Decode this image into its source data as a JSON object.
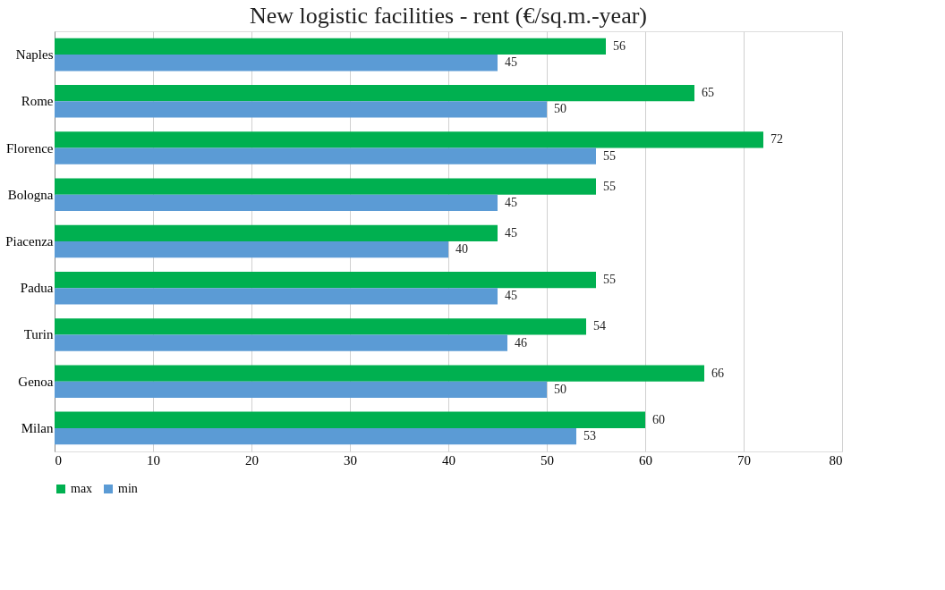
{
  "chart_data": {
    "type": "bar",
    "orientation": "horizontal",
    "title": "New logistic facilities - rent (€/sq.m.-year)",
    "categories": [
      "Naples",
      "Rome",
      "Florence",
      "Bologna",
      "Piacenza",
      "Padua",
      "Turin",
      "Genoa",
      "Milan"
    ],
    "series": [
      {
        "name": "max",
        "color": "#00b050",
        "values": [
          56,
          65,
          72,
          55,
          45,
          55,
          54,
          66,
          60
        ]
      },
      {
        "name": "min",
        "color": "#5b9bd5",
        "values": [
          45,
          50,
          55,
          45,
          40,
          45,
          46,
          50,
          53
        ]
      }
    ],
    "xlim": [
      0,
      80
    ],
    "xticks": [
      0,
      10,
      20,
      30,
      40,
      50,
      60,
      70,
      80
    ],
    "grid": "x",
    "legend": "bottom",
    "data_labels": true
  }
}
